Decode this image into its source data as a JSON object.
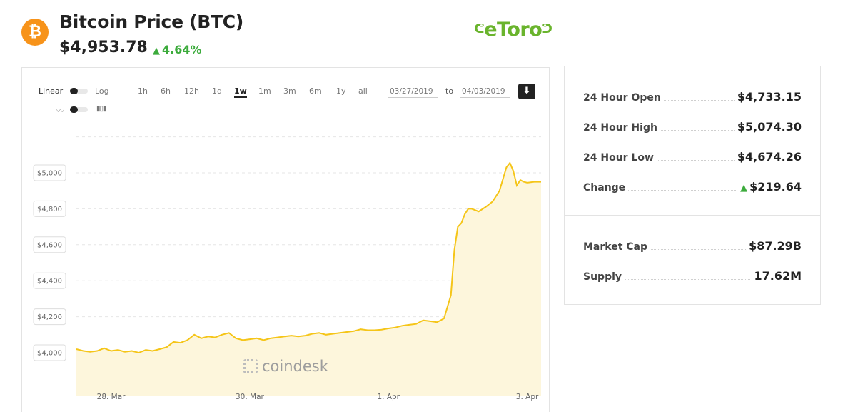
{
  "header": {
    "coin_icon_glyph": "₿",
    "title": "Bitcoin Price (BTC)",
    "price": "$4,953.78",
    "change_pct": "4.64%",
    "change_color": "#3cab3c",
    "sponsor": "eToro",
    "sponsor_color": "#6ab42d",
    "brand_color": "#f7931a"
  },
  "controls": {
    "scale_linear": "Linear",
    "scale_log": "Log",
    "ranges": [
      "1h",
      "6h",
      "12h",
      "1d",
      "1w",
      "1m",
      "3m",
      "6m",
      "1y",
      "all"
    ],
    "active_range": "1w",
    "date_from": "03/27/2019",
    "to_label": "to",
    "date_to": "04/03/2019",
    "download_icon": "download-icon",
    "line_icon": "line-chart-icon",
    "candle_icon": "candlestick-icon"
  },
  "watermark": "coindesk",
  "chart_data": {
    "type": "area",
    "ylim": [
      3900,
      5200
    ],
    "yticks": [
      "$4,000",
      "$4,200",
      "$4,400",
      "$4,600",
      "$4,800",
      "$5,000"
    ],
    "ytick_values": [
      4000,
      4200,
      4400,
      4600,
      4800,
      5000
    ],
    "xticks": [
      "28. Mar",
      "30. Mar",
      "1. Apr",
      "3. Apr"
    ],
    "xtick_values": [
      1,
      3,
      5,
      7
    ],
    "xlim": [
      0.5,
      7.2
    ],
    "grid": true,
    "line_color": "#f5c518",
    "fill_color": "#fdf6dc",
    "x": [
      0.5,
      0.6,
      0.7,
      0.8,
      0.9,
      1.0,
      1.1,
      1.2,
      1.3,
      1.4,
      1.5,
      1.6,
      1.7,
      1.8,
      1.9,
      2.0,
      2.1,
      2.2,
      2.3,
      2.4,
      2.5,
      2.6,
      2.7,
      2.8,
      2.9,
      3.0,
      3.1,
      3.2,
      3.3,
      3.4,
      3.5,
      3.6,
      3.7,
      3.8,
      3.9,
      4.0,
      4.1,
      4.2,
      4.3,
      4.4,
      4.5,
      4.6,
      4.7,
      4.8,
      4.9,
      5.0,
      5.1,
      5.2,
      5.3,
      5.4,
      5.5,
      5.6,
      5.7,
      5.8,
      5.9,
      5.95,
      6.0,
      6.05,
      6.1,
      6.15,
      6.2,
      6.3,
      6.4,
      6.5,
      6.6,
      6.7,
      6.75,
      6.8,
      6.85,
      6.9,
      6.95,
      7.0,
      7.1,
      7.2
    ],
    "y": [
      4020,
      4010,
      4005,
      4010,
      4025,
      4010,
      4015,
      4005,
      4010,
      4000,
      4015,
      4010,
      4020,
      4030,
      4060,
      4055,
      4070,
      4100,
      4080,
      4090,
      4085,
      4100,
      4110,
      4080,
      4070,
      4075,
      4080,
      4070,
      4080,
      4085,
      4090,
      4095,
      4090,
      4095,
      4105,
      4110,
      4100,
      4105,
      4110,
      4115,
      4120,
      4130,
      4125,
      4125,
      4128,
      4135,
      4140,
      4150,
      4155,
      4160,
      4180,
      4175,
      4170,
      4190,
      4320,
      4570,
      4700,
      4720,
      4770,
      4800,
      4800,
      4785,
      4810,
      4840,
      4900,
      5030,
      5055,
      5010,
      4930,
      4960,
      4950,
      4945,
      4950,
      4950
    ]
  },
  "stats": {
    "open_label": "24 Hour Open",
    "open_value": "$4,733.15",
    "high_label": "24 Hour High",
    "high_value": "$5,074.30",
    "low_label": "24 Hour Low",
    "low_value": "$4,674.26",
    "change_label": "Change",
    "change_value": "$219.64",
    "mcap_label": "Market Cap",
    "mcap_value": "$87.29B",
    "supply_label": "Supply",
    "supply_value": "17.62M"
  }
}
